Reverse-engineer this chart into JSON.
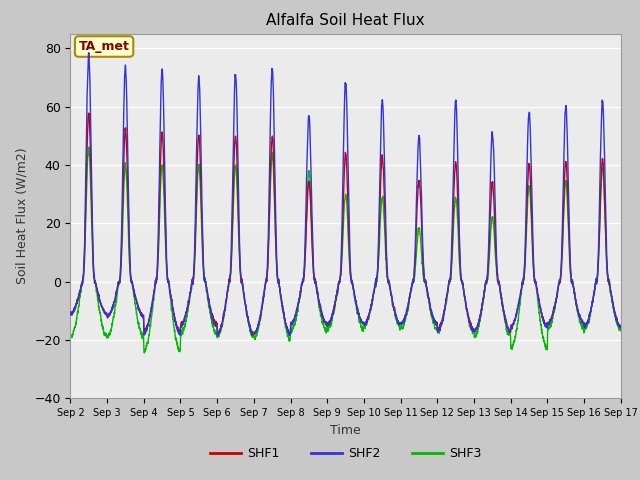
{
  "title": "Alfalfa Soil Heat Flux",
  "xlabel": "Time",
  "ylabel": "Soil Heat Flux (W/m2)",
  "ylim": [
    -40,
    85
  ],
  "yticks": [
    -40,
    -20,
    0,
    20,
    40,
    60,
    80
  ],
  "xtick_labels": [
    "Sep 2",
    "Sep 3",
    "Sep 4",
    "Sep 5",
    "Sep 6",
    "Sep 7",
    "Sep 8",
    "Sep 9",
    "Sep 10",
    "Sep 11",
    "Sep 12",
    "Sep 13",
    "Sep 14",
    "Sep 15",
    "Sep 16",
    "Sep 17"
  ],
  "colors": {
    "SHF1": "#cc0000",
    "SHF2": "#3333dd",
    "SHF3": "#00bb00"
  },
  "fig_facecolor": "#c8c8c8",
  "ax_facecolor": "#ebebeb",
  "annotation": "TA_met",
  "annotation_color": "#880000",
  "annotation_bg": "#ffffcc",
  "annotation_border": "#aa8800",
  "linewidth": 1.0
}
